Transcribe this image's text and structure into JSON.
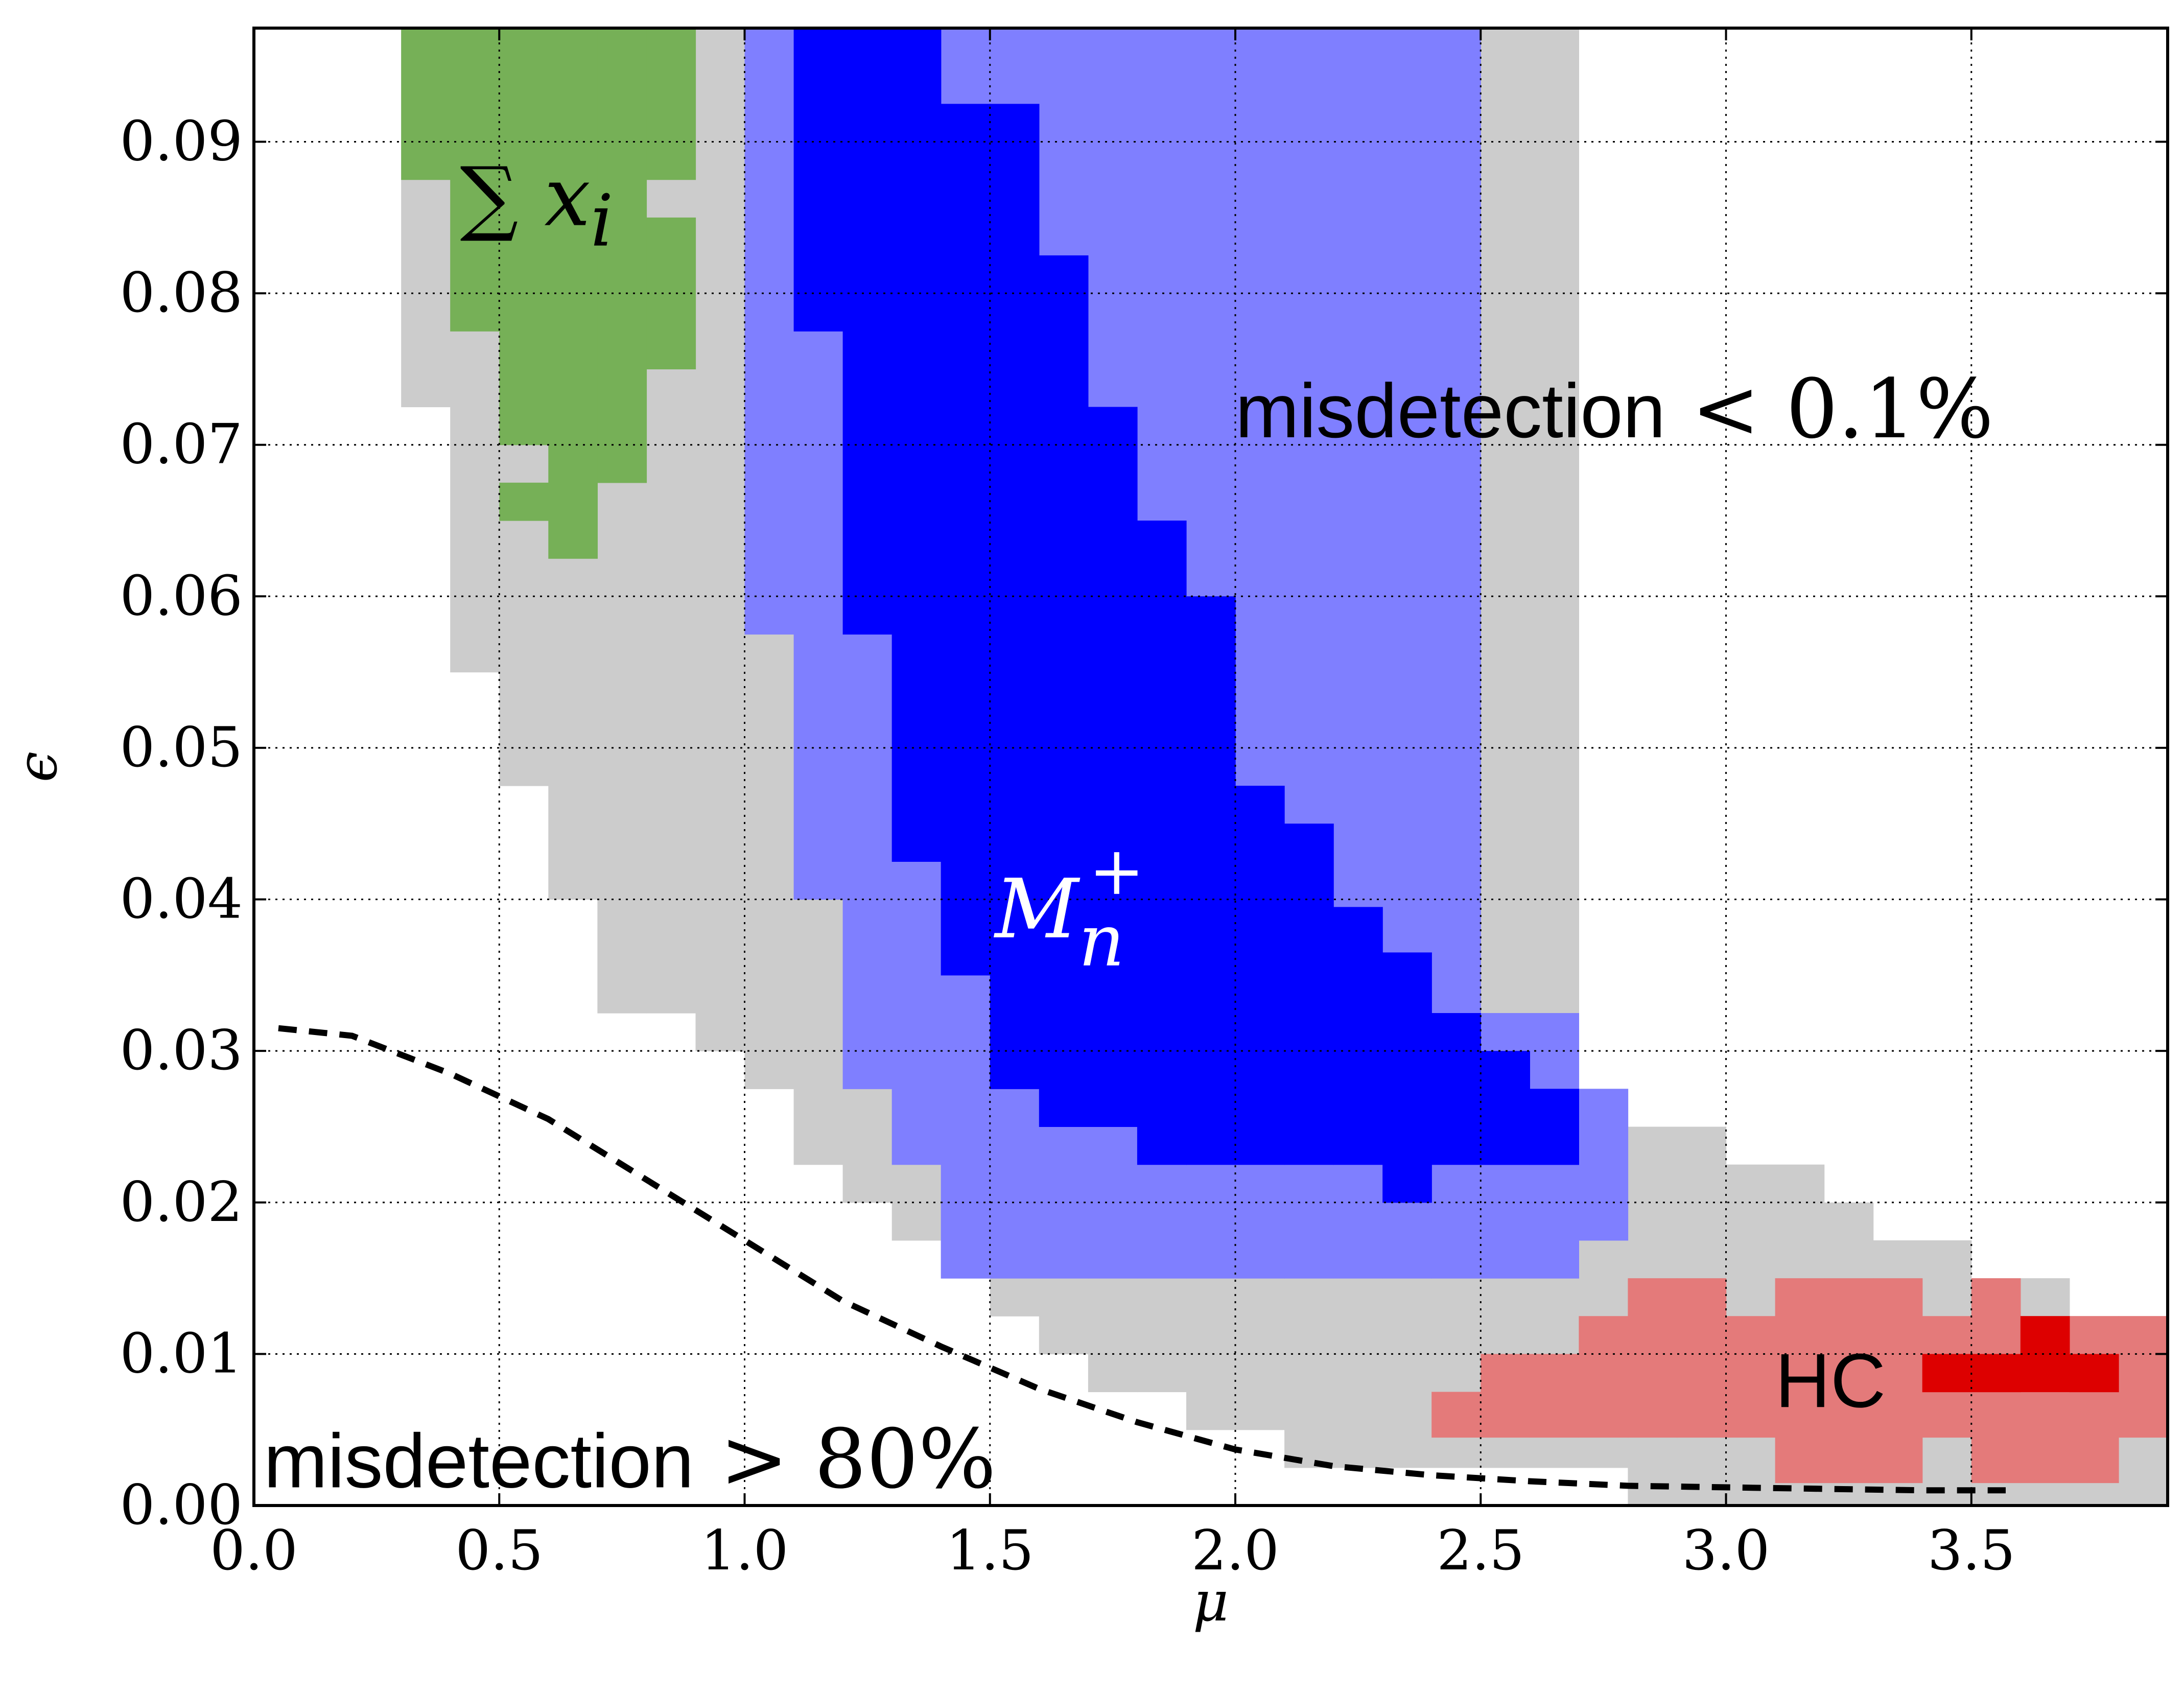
{
  "chart_data": {
    "type": "heatmap",
    "title": "",
    "xlabel": "μ",
    "ylabel": "ϵ",
    "xlim": [
      0.0,
      3.9
    ],
    "ylim": [
      0.0,
      0.0975
    ],
    "grid": true,
    "x_ticks": [
      0.0,
      0.5,
      1.0,
      1.5,
      2.0,
      2.5,
      3.0,
      3.5
    ],
    "y_ticks": [
      0.0,
      0.01,
      0.02,
      0.03,
      0.04,
      0.05,
      0.06,
      0.07,
      0.08,
      0.09
    ],
    "x_tick_labels": [
      "0.0",
      "0.5",
      "1.0",
      "1.5",
      "2.0",
      "2.5",
      "3.0",
      "3.5"
    ],
    "y_tick_labels": [
      "0.00",
      "0.01",
      "0.02",
      "0.03",
      "0.04",
      "0.05",
      "0.06",
      "0.07",
      "0.08",
      "0.09"
    ],
    "cell_width_mu": 0.1,
    "cell_height_eps": 0.0025,
    "colors": {
      "gray": "#cccccc",
      "green": "#76b057",
      "light_blue": "#7f7fff",
      "blue": "#0000ff",
      "light_red": "#e47a7a",
      "red": "#dd0000",
      "boundary": "#000000"
    },
    "regions": [
      {
        "name": "gray",
        "color_key": "gray",
        "columns": [
          {
            "mu": 0.3,
            "eps_min": 0.0725,
            "eps_max": 0.0975
          },
          {
            "mu": 0.4,
            "eps_min": 0.055,
            "eps_max": 0.0975
          },
          {
            "mu": 0.5,
            "eps_min": 0.0475,
            "eps_max": 0.0975
          },
          {
            "mu": 0.6,
            "eps_min": 0.04,
            "eps_max": 0.0975
          },
          {
            "mu": 0.7,
            "eps_min": 0.0325,
            "eps_max": 0.0975
          },
          {
            "mu": 0.8,
            "eps_min": 0.0325,
            "eps_max": 0.0975
          },
          {
            "mu": 0.9,
            "eps_min": 0.03,
            "eps_max": 0.0975
          },
          {
            "mu": 1.0,
            "eps_min": 0.0275,
            "eps_max": 0.0975
          },
          {
            "mu": 1.1,
            "eps_min": 0.0225,
            "eps_max": 0.0975
          },
          {
            "mu": 1.2,
            "eps_min": 0.02,
            "eps_max": 0.0975
          },
          {
            "mu": 1.3,
            "eps_min": 0.0175,
            "eps_max": 0.0975
          },
          {
            "mu": 1.4,
            "eps_min": 0.015,
            "eps_max": 0.0975
          },
          {
            "mu": 1.5,
            "eps_min": 0.0125,
            "eps_max": 0.0975
          },
          {
            "mu": 1.6,
            "eps_min": 0.01,
            "eps_max": 0.0975
          },
          {
            "mu": 1.7,
            "eps_min": 0.0075,
            "eps_max": 0.0975
          },
          {
            "mu": 1.8,
            "eps_min": 0.0075,
            "eps_max": 0.0975
          },
          {
            "mu": 1.9,
            "eps_min": 0.005,
            "eps_max": 0.0975
          },
          {
            "mu": 2.0,
            "eps_min": 0.005,
            "eps_max": 0.0975
          },
          {
            "mu": 2.1,
            "eps_min": 0.0025,
            "eps_max": 0.0975
          },
          {
            "mu": 2.2,
            "eps_min": 0.0025,
            "eps_max": 0.0975
          },
          {
            "mu": 2.3,
            "eps_min": 0.0025,
            "eps_max": 0.0975
          },
          {
            "mu": 2.4,
            "eps_min": 0.0025,
            "eps_max": 0.0975
          },
          {
            "mu": 2.5,
            "eps_min": 0.0025,
            "eps_max": 0.0975
          },
          {
            "mu": 2.6,
            "eps_min": 0.0025,
            "eps_max": 0.0975
          },
          {
            "mu": 2.7,
            "eps_min": 0.0025,
            "eps_max": 0.0275
          },
          {
            "mu": 2.8,
            "eps_min": 0.0,
            "eps_max": 0.025
          },
          {
            "mu": 2.9,
            "eps_min": 0.0,
            "eps_max": 0.025
          },
          {
            "mu": 3.0,
            "eps_min": 0.0,
            "eps_max": 0.0225
          },
          {
            "mu": 3.1,
            "eps_min": 0.0,
            "eps_max": 0.0225
          },
          {
            "mu": 3.2,
            "eps_min": 0.0,
            "eps_max": 0.02
          },
          {
            "mu": 3.3,
            "eps_min": 0.0,
            "eps_max": 0.0175
          },
          {
            "mu": 3.4,
            "eps_min": 0.0,
            "eps_max": 0.0175
          },
          {
            "mu": 3.5,
            "eps_min": 0.0,
            "eps_max": 0.015
          },
          {
            "mu": 3.6,
            "eps_min": 0.0,
            "eps_max": 0.015
          },
          {
            "mu": 3.7,
            "eps_min": 0.0,
            "eps_max": 0.0125
          },
          {
            "mu": 3.8,
            "eps_min": 0.0,
            "eps_max": 0.0125
          }
        ]
      },
      {
        "name": "green",
        "color_key": "green",
        "columns": [
          {
            "mu": 0.3,
            "eps_min": 0.0875,
            "eps_max": 0.0975
          },
          {
            "mu": 0.4,
            "eps_min": 0.0775,
            "eps_max": 0.0975
          },
          {
            "mu": 0.5,
            "eps_min": 0.065,
            "eps_max": 0.0675
          },
          {
            "mu": 0.5,
            "eps_min": 0.07,
            "eps_max": 0.0975
          },
          {
            "mu": 0.6,
            "eps_min": 0.0625,
            "eps_max": 0.0975
          },
          {
            "mu": 0.7,
            "eps_min": 0.0675,
            "eps_max": 0.0975
          },
          {
            "mu": 0.8,
            "eps_min": 0.075,
            "eps_max": 0.085
          },
          {
            "mu": 0.8,
            "eps_min": 0.0875,
            "eps_max": 0.0975
          }
        ]
      },
      {
        "name": "light-blue",
        "color_key": "light_blue",
        "columns": [
          {
            "mu": 1.0,
            "eps_min": 0.0575,
            "eps_max": 0.0975
          },
          {
            "mu": 1.1,
            "eps_min": 0.04,
            "eps_max": 0.0975
          },
          {
            "mu": 1.2,
            "eps_min": 0.0275,
            "eps_max": 0.0975
          },
          {
            "mu": 1.3,
            "eps_min": 0.0225,
            "eps_max": 0.0975
          },
          {
            "mu": 1.4,
            "eps_min": 0.015,
            "eps_max": 0.0975
          },
          {
            "mu": 1.5,
            "eps_min": 0.015,
            "eps_max": 0.0975
          },
          {
            "mu": 1.6,
            "eps_min": 0.015,
            "eps_max": 0.0975
          },
          {
            "mu": 1.7,
            "eps_min": 0.015,
            "eps_max": 0.0975
          },
          {
            "mu": 1.8,
            "eps_min": 0.015,
            "eps_max": 0.0975
          },
          {
            "mu": 1.9,
            "eps_min": 0.015,
            "eps_max": 0.0975
          },
          {
            "mu": 2.0,
            "eps_min": 0.015,
            "eps_max": 0.0975
          },
          {
            "mu": 2.1,
            "eps_min": 0.015,
            "eps_max": 0.0975
          },
          {
            "mu": 2.2,
            "eps_min": 0.015,
            "eps_max": 0.0975
          },
          {
            "mu": 2.3,
            "eps_min": 0.015,
            "eps_max": 0.0975
          },
          {
            "mu": 2.4,
            "eps_min": 0.015,
            "eps_max": 0.0975
          },
          {
            "mu": 2.5,
            "eps_min": 0.015,
            "eps_max": 0.0325
          },
          {
            "mu": 2.6,
            "eps_min": 0.015,
            "eps_max": 0.0325
          },
          {
            "mu": 2.7,
            "eps_min": 0.0175,
            "eps_max": 0.0275
          }
        ]
      },
      {
        "name": "blue",
        "color_key": "blue",
        "columns": [
          {
            "mu": 1.1,
            "eps_min": 0.0775,
            "eps_max": 0.0975
          },
          {
            "mu": 1.2,
            "eps_min": 0.0575,
            "eps_max": 0.0975
          },
          {
            "mu": 1.3,
            "eps_min": 0.0425,
            "eps_max": 0.0975
          },
          {
            "mu": 1.4,
            "eps_min": 0.035,
            "eps_max": 0.0925
          },
          {
            "mu": 1.5,
            "eps_min": 0.0275,
            "eps_max": 0.0925
          },
          {
            "mu": 1.6,
            "eps_min": 0.025,
            "eps_max": 0.0825
          },
          {
            "mu": 1.7,
            "eps_min": 0.025,
            "eps_max": 0.0725
          },
          {
            "mu": 1.8,
            "eps_min": 0.0225,
            "eps_max": 0.065
          },
          {
            "mu": 1.9,
            "eps_min": 0.0225,
            "eps_max": 0.06
          },
          {
            "mu": 2.0,
            "eps_min": 0.0225,
            "eps_max": 0.0475
          },
          {
            "mu": 2.1,
            "eps_min": 0.0225,
            "eps_max": 0.045
          },
          {
            "mu": 2.2,
            "eps_min": 0.0225,
            "eps_max": 0.0395
          },
          {
            "mu": 2.3,
            "eps_min": 0.02,
            "eps_max": 0.0365
          },
          {
            "mu": 2.4,
            "eps_min": 0.0225,
            "eps_max": 0.0325
          },
          {
            "mu": 2.5,
            "eps_min": 0.0225,
            "eps_max": 0.03
          },
          {
            "mu": 2.6,
            "eps_min": 0.025,
            "eps_max": 0.0275
          },
          {
            "mu": 2.6,
            "eps_min": 0.0225,
            "eps_max": 0.025
          }
        ]
      },
      {
        "name": "light-red",
        "color_key": "light_red",
        "columns": [
          {
            "mu": 2.4,
            "eps_min": 0.0045,
            "eps_max": 0.0075
          },
          {
            "mu": 2.5,
            "eps_min": 0.0045,
            "eps_max": 0.01
          },
          {
            "mu": 2.6,
            "eps_min": 0.0045,
            "eps_max": 0.01
          },
          {
            "mu": 2.7,
            "eps_min": 0.0045,
            "eps_max": 0.0125
          },
          {
            "mu": 2.8,
            "eps_min": 0.0045,
            "eps_max": 0.015
          },
          {
            "mu": 2.9,
            "eps_min": 0.0045,
            "eps_max": 0.015
          },
          {
            "mu": 3.0,
            "eps_min": 0.0045,
            "eps_max": 0.0125
          },
          {
            "mu": 3.1,
            "eps_min": 0.0015,
            "eps_max": 0.015
          },
          {
            "mu": 3.2,
            "eps_min": 0.0015,
            "eps_max": 0.015
          },
          {
            "mu": 3.3,
            "eps_min": 0.0015,
            "eps_max": 0.015
          },
          {
            "mu": 3.4,
            "eps_min": 0.0045,
            "eps_max": 0.0125
          },
          {
            "mu": 3.5,
            "eps_min": 0.0015,
            "eps_max": 0.015
          },
          {
            "mu": 3.6,
            "eps_min": 0.0015,
            "eps_max": 0.0125
          },
          {
            "mu": 3.7,
            "eps_min": 0.0015,
            "eps_max": 0.0125
          },
          {
            "mu": 3.8,
            "eps_min": 0.0045,
            "eps_max": 0.0125
          }
        ]
      },
      {
        "name": "red",
        "color_key": "red",
        "columns": [
          {
            "mu": 3.4,
            "eps_min": 0.0075,
            "eps_max": 0.01
          },
          {
            "mu": 3.5,
            "eps_min": 0.0075,
            "eps_max": 0.01
          },
          {
            "mu": 3.6,
            "eps_min": 0.0075,
            "eps_max": 0.0125
          },
          {
            "mu": 3.7,
            "eps_min": 0.0075,
            "eps_max": 0.01
          }
        ]
      }
    ],
    "boundary_curve": {
      "name": "dashed boundary",
      "style": "dashed",
      "x": [
        0.05,
        0.2,
        0.4,
        0.6,
        0.8,
        1.0,
        1.2,
        1.4,
        1.6,
        1.8,
        2.0,
        2.2,
        2.4,
        2.6,
        2.8,
        3.0,
        3.2,
        3.4,
        3.57
      ],
      "y": [
        0.0315,
        0.031,
        0.0285,
        0.0255,
        0.0215,
        0.0175,
        0.0135,
        0.0105,
        0.0077,
        0.0055,
        0.0037,
        0.0026,
        0.002,
        0.0016,
        0.0013,
        0.0012,
        0.0011,
        0.001,
        0.001
      ]
    },
    "annotations": [
      {
        "key": "sum",
        "text": "∑ x",
        "sub": "i",
        "mu": 0.42,
        "eps": 0.0845,
        "color_key": "boundary"
      },
      {
        "key": "mn",
        "text": "M",
        "sub": "n",
        "sup": "+",
        "mu": 1.51,
        "eps": 0.0375,
        "color": "#ffffff"
      },
      {
        "key": "hc",
        "text": "HC",
        "mu": 3.1,
        "eps": 0.0065,
        "color_key": "boundary"
      },
      {
        "key": "top_label",
        "text": "misdetection",
        "math": "< 0.1%",
        "mu": 2.0,
        "eps": 0.0705
      },
      {
        "key": "bottom_label",
        "text": "misdetection",
        "math": "> 80%",
        "mu": 0.02,
        "eps": 0.0012
      }
    ]
  }
}
